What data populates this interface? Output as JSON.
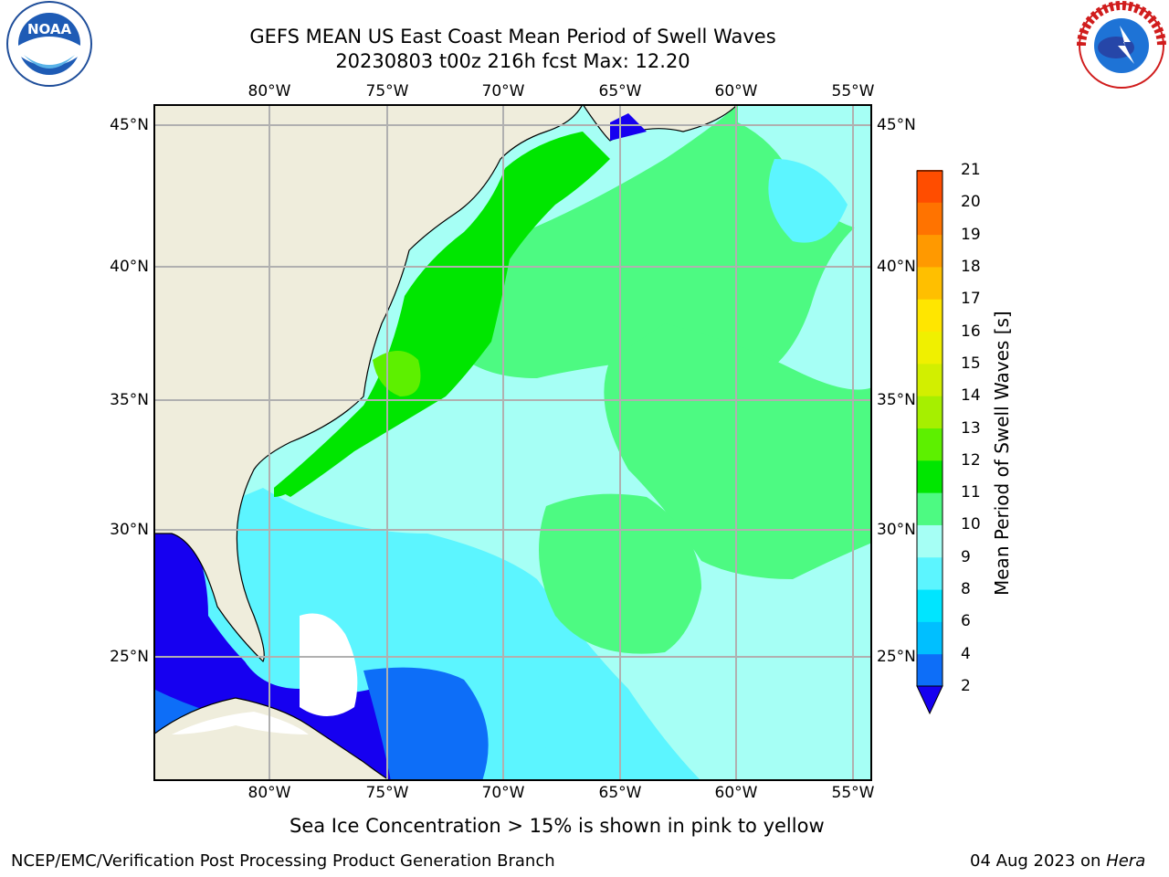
{
  "header": {
    "title_line1": "GEFS MEAN US East Coast Mean Period of Swell Waves",
    "title_line2": "20230803 t00z 216h fcst   Max: 12.20"
  },
  "logos": {
    "left": {
      "icon": "noaa-logo-icon",
      "text": "NOAA"
    },
    "right": {
      "icon": "nws-logo-icon",
      "text": "NATIONAL WEATHER SERVICE"
    }
  },
  "map": {
    "lon_labels": [
      "80°W",
      "75°W",
      "70°W",
      "65°W",
      "60°W",
      "55°W"
    ],
    "lat_labels": [
      "45°N",
      "40°N",
      "35°N",
      "30°N",
      "25°N"
    ],
    "extent": {
      "lon": [
        -85,
        -54
      ],
      "lat": [
        20.5,
        46
      ]
    },
    "colors": {
      "land": "#efeddc",
      "coast": "#000000",
      "grid": "#b0b0b0"
    }
  },
  "colorbar": {
    "label": "Mean Period of Swell Waves [s]",
    "ticks": [
      "2",
      "4",
      "6",
      "8",
      "9",
      "10",
      "11",
      "12",
      "13",
      "14",
      "15",
      "16",
      "17",
      "18",
      "19",
      "20",
      "21"
    ],
    "colors": [
      "#0d6ef8",
      "#00bfff",
      "#00e5ff",
      "#5cf5ff",
      "#a6fff5",
      "#4dfa82",
      "#00e600",
      "#5df000",
      "#a6ef00",
      "#d2ef00",
      "#f0f000",
      "#ffe600",
      "#ffbf00",
      "#ff9900",
      "#ff7300",
      "#ff4d00",
      "#ff1a00",
      "#ff0000"
    ],
    "extend_color": "#1600f0"
  },
  "note": "Sea Ice Concentration > 15% is shown in pink to yellow",
  "footer": {
    "left": "NCEP/EMC/Verification Post Processing Product Generation Branch",
    "right_date": "04 Aug 2023 on",
    "right_host": "Hera"
  }
}
